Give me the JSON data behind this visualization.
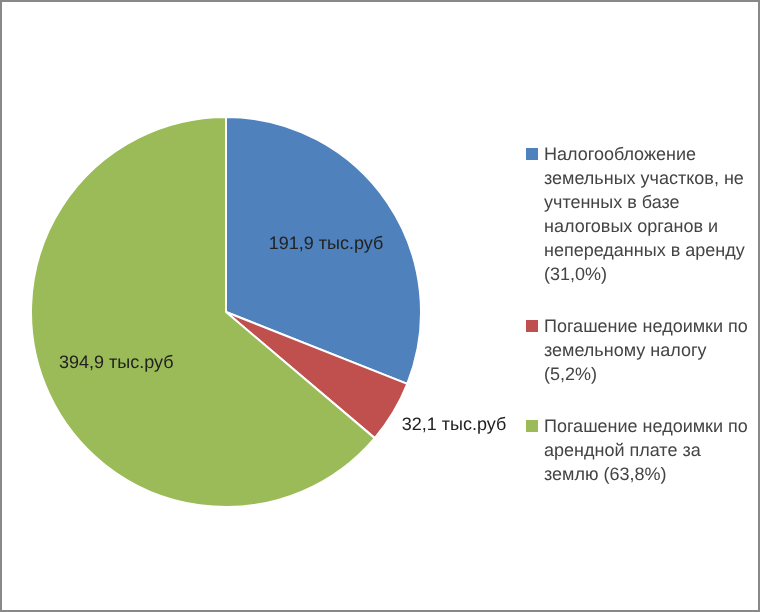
{
  "chart_data": {
    "type": "pie",
    "categories": [
      "Налогообложение земельных участков, не учтенных в базе налоговых органов и непереданных в аренду (31,0%)",
      "Погашение недоимки по земельному налогу (5,2%)",
      "Погашение недоимки по арендной плате за землю (63,8%)"
    ],
    "values": [
      191.9,
      32.1,
      394.9
    ],
    "colors": [
      "#4f81bd",
      "#c0504d",
      "#9bbb59"
    ],
    "value_labels": [
      "191,9 тыс.руб",
      "32,1 тыс.руб",
      "394,9 тыс.руб"
    ],
    "legend": "right"
  }
}
